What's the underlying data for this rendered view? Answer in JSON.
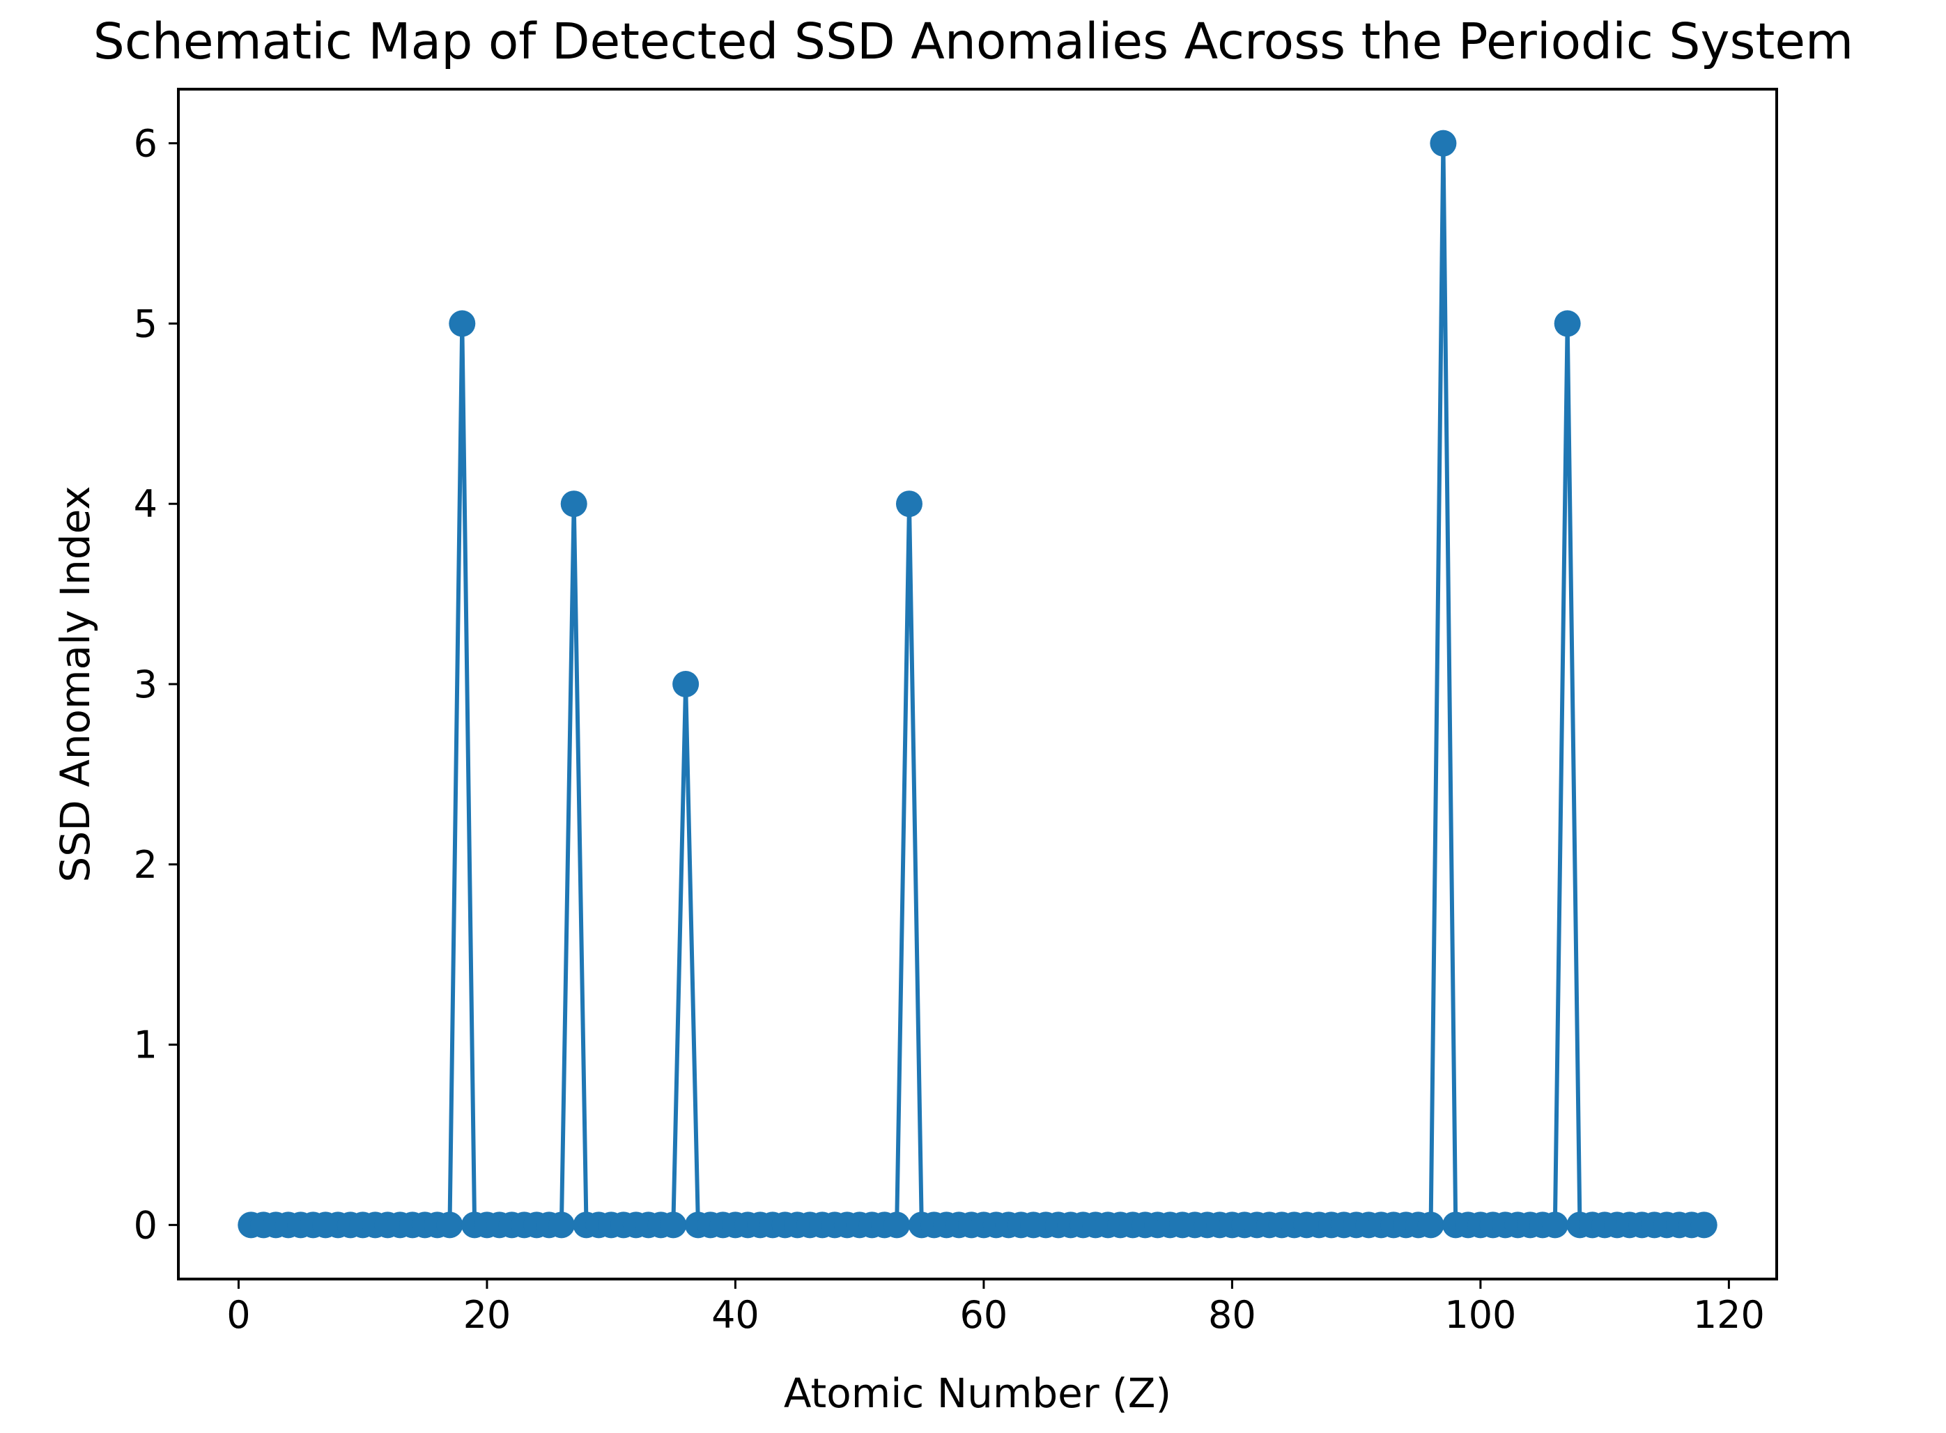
{
  "chart_data": {
    "type": "line",
    "title": "Schematic Map of Detected SSD Anomalies Across the Periodic System",
    "xlabel": "Atomic Number (Z)",
    "ylabel": "SSD Anomaly Index",
    "xlim": [
      -4.85,
      123.85
    ],
    "ylim": [
      -0.3,
      6.3
    ],
    "xticks": [
      0,
      20,
      40,
      60,
      80,
      100,
      120
    ],
    "yticks": [
      0,
      1,
      2,
      3,
      4,
      5,
      6
    ],
    "grid": false,
    "legend": "none",
    "marker": "circle",
    "color": "#1f77b4",
    "x_range": [
      1,
      118
    ],
    "baseline_value": 0,
    "peaks": [
      {
        "x": 18,
        "y": 5
      },
      {
        "x": 27,
        "y": 4
      },
      {
        "x": 36,
        "y": 3
      },
      {
        "x": 54,
        "y": 4
      },
      {
        "x": 97,
        "y": 6
      },
      {
        "x": 107,
        "y": 5
      }
    ]
  }
}
